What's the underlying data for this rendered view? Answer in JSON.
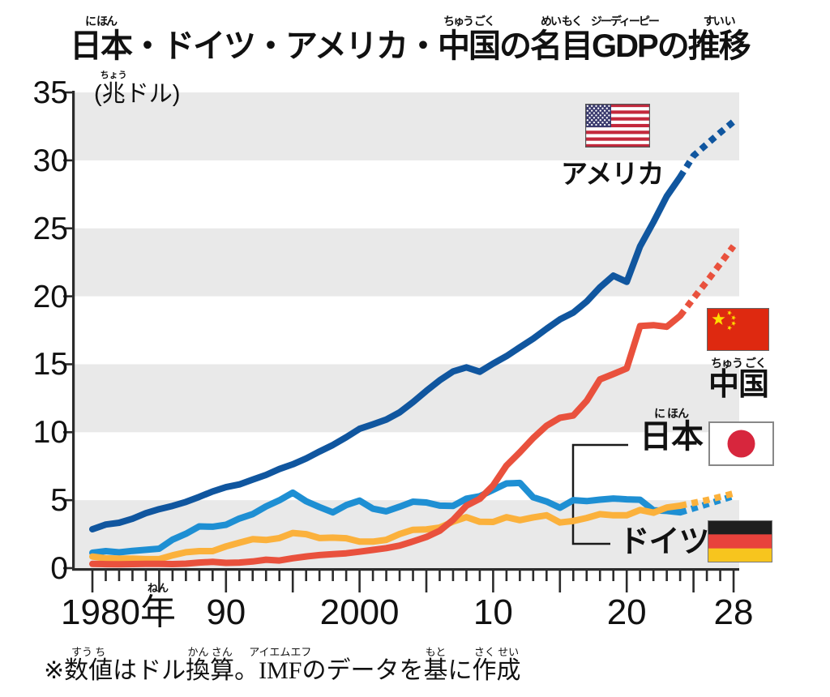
{
  "title": {
    "segments": [
      {
        "base": "日本",
        "ruby": "に ほん"
      },
      {
        "base": "・"
      },
      {
        "base": "ドイツ"
      },
      {
        "base": "・"
      },
      {
        "base": "アメリカ"
      },
      {
        "base": "・"
      },
      {
        "base": "中国",
        "ruby": "ちゅう ごく"
      },
      {
        "base": "の"
      },
      {
        "base": "名目",
        "ruby": "めい もく"
      },
      {
        "base": "GDP",
        "ruby": "ジーディーピー"
      },
      {
        "base": "の"
      },
      {
        "base": "推移",
        "ruby": "すい い"
      }
    ]
  },
  "unit_label": {
    "segments": [
      {
        "base": "("
      },
      {
        "base": "兆",
        "ruby": "ちょう"
      },
      {
        "base": "ドル)"
      }
    ]
  },
  "y_axis": {
    "tick_values": [
      0,
      5,
      10,
      15,
      20,
      25,
      30,
      35
    ]
  },
  "x_axis": {
    "tick_labels": [
      {
        "year": 1980,
        "segments": [
          {
            "base": "1980"
          },
          {
            "base": "年",
            "ruby": "ねん"
          }
        ],
        "offset": 32
      },
      {
        "year": 1990,
        "segments": [
          {
            "base": "90"
          }
        ],
        "offset": 0
      },
      {
        "year": 2000,
        "segments": [
          {
            "base": "2000"
          }
        ],
        "offset": 0
      },
      {
        "year": 2010,
        "segments": [
          {
            "base": "10"
          }
        ],
        "offset": 0
      },
      {
        "year": 2020,
        "segments": [
          {
            "base": "20"
          }
        ],
        "offset": 0
      },
      {
        "year": 2028,
        "segments": [
          {
            "base": "28"
          }
        ],
        "offset": 0
      }
    ]
  },
  "legend": {
    "usa": {
      "segments": [
        {
          "base": "アメリカ"
        }
      ]
    },
    "china": {
      "segments": [
        {
          "base": "中国",
          "ruby": "ちゅう ごく"
        }
      ]
    },
    "japan": {
      "segments": [
        {
          "base": "日本",
          "ruby": "に ほん"
        }
      ]
    },
    "germany": {
      "segments": [
        {
          "base": "ドイツ"
        }
      ]
    }
  },
  "footnote": {
    "segments": [
      {
        "base": "※"
      },
      {
        "base": "数値",
        "ruby": "すう ち"
      },
      {
        "base": "はドル"
      },
      {
        "base": "換算",
        "ruby": "かん さん"
      },
      {
        "base": "。"
      },
      {
        "base": "IMF",
        "ruby": "アイエムエフ"
      },
      {
        "base": "のデータを"
      },
      {
        "base": "基",
        "ruby": "もと"
      },
      {
        "base": "に"
      },
      {
        "base": "作成",
        "ruby": "さく せい"
      }
    ]
  },
  "chart_data": {
    "type": "line",
    "title": "日本・ドイツ・アメリカ・中国の名目GDPの推移",
    "ylabel": "兆ドル",
    "xlabel": "年",
    "ylim": [
      0,
      35
    ],
    "y_tick_step": 5,
    "x_range": [
      1980,
      2028
    ],
    "grid": "horizontal-bands",
    "band_color": "#E9E9E9",
    "projection_from": 2024,
    "legend_position": "right-flags",
    "x": [
      1980,
      1981,
      1982,
      1983,
      1984,
      1985,
      1986,
      1987,
      1988,
      1989,
      1990,
      1991,
      1992,
      1993,
      1994,
      1995,
      1996,
      1997,
      1998,
      1999,
      2000,
      2001,
      2002,
      2003,
      2004,
      2005,
      2006,
      2007,
      2008,
      2009,
      2010,
      2011,
      2012,
      2013,
      2014,
      2015,
      2016,
      2017,
      2018,
      2019,
      2020,
      2021,
      2022,
      2023,
      2024,
      2025,
      2026,
      2027,
      2028
    ],
    "series": [
      {
        "name": "アメリカ",
        "key": "usa",
        "color": "#10569F",
        "values": [
          2.86,
          3.21,
          3.34,
          3.63,
          4.04,
          4.34,
          4.58,
          4.87,
          5.24,
          5.64,
          5.96,
          6.16,
          6.52,
          6.86,
          7.29,
          7.64,
          8.07,
          8.58,
          9.06,
          9.63,
          10.25,
          10.58,
          10.93,
          11.46,
          12.21,
          13.04,
          13.82,
          14.47,
          14.77,
          14.45,
          15.05,
          15.6,
          16.25,
          16.88,
          17.61,
          18.3,
          18.8,
          19.61,
          20.66,
          21.52,
          21.06,
          23.68,
          25.46,
          27.36,
          28.78,
          30.34,
          31.2,
          32.05,
          32.85
        ]
      },
      {
        "name": "日本",
        "key": "japan",
        "color": "#1E8FD3",
        "values": [
          1.13,
          1.25,
          1.16,
          1.27,
          1.35,
          1.43,
          2.1,
          2.53,
          3.07,
          3.05,
          3.19,
          3.65,
          3.98,
          4.54,
          4.99,
          5.55,
          4.92,
          4.49,
          4.1,
          4.64,
          4.97,
          4.37,
          4.18,
          4.52,
          4.89,
          4.83,
          4.6,
          4.58,
          5.11,
          5.29,
          5.76,
          6.23,
          6.27,
          5.21,
          4.9,
          4.44,
          5.0,
          4.93,
          5.04,
          5.12,
          5.06,
          5.03,
          4.26,
          4.21,
          4.1,
          4.4,
          4.7,
          5.0,
          5.3
        ]
      },
      {
        "name": "ドイツ",
        "key": "germany",
        "color": "#FBB13C",
        "values": [
          0.85,
          0.72,
          0.7,
          0.7,
          0.66,
          0.66,
          0.94,
          1.17,
          1.25,
          1.25,
          1.6,
          1.87,
          2.13,
          2.07,
          2.21,
          2.59,
          2.5,
          2.21,
          2.24,
          2.2,
          1.95,
          1.95,
          2.08,
          2.51,
          2.82,
          2.85,
          2.99,
          3.42,
          3.75,
          3.41,
          3.4,
          3.75,
          3.53,
          3.73,
          3.89,
          3.36,
          3.47,
          3.69,
          3.97,
          3.89,
          3.89,
          4.28,
          4.08,
          4.46,
          4.6,
          4.8,
          5.0,
          5.25,
          5.5
        ]
      },
      {
        "name": "中国",
        "key": "china",
        "color": "#E9513D",
        "values": [
          0.31,
          0.29,
          0.28,
          0.3,
          0.31,
          0.31,
          0.3,
          0.33,
          0.41,
          0.46,
          0.39,
          0.41,
          0.49,
          0.62,
          0.56,
          0.73,
          0.86,
          0.96,
          1.03,
          1.09,
          1.21,
          1.34,
          1.47,
          1.66,
          1.96,
          2.29,
          2.75,
          3.55,
          4.59,
          5.1,
          6.09,
          7.55,
          8.53,
          9.57,
          10.48,
          11.06,
          11.23,
          12.31,
          13.89,
          14.28,
          14.69,
          17.82,
          17.88,
          17.76,
          18.56,
          19.85,
          21.1,
          22.4,
          23.7
        ]
      }
    ]
  }
}
